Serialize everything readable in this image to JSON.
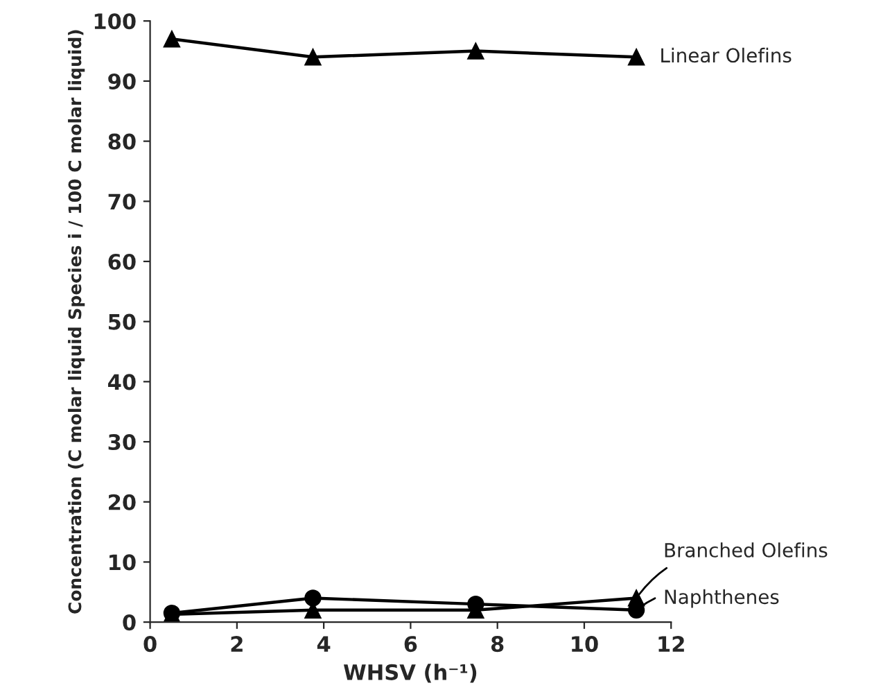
{
  "chart_data": {
    "type": "line",
    "xlabel": "WHSV (h⁻¹)",
    "ylabel": "Concentration (C molar liquid Species i / 100 C molar liquid)",
    "x": [
      0.5,
      3.75,
      7.5,
      11.2
    ],
    "series": [
      {
        "name": "Linear Olefins",
        "color": "#000000",
        "marker": "triangle",
        "values": [
          97,
          94,
          95,
          94
        ]
      },
      {
        "name": "Branched Olefins",
        "color": "#000000",
        "marker": "triangle",
        "values": [
          1.3,
          2,
          2,
          4
        ]
      },
      {
        "name": "Naphthenes",
        "color": "#000000",
        "marker": "circle",
        "values": [
          1.5,
          4,
          3,
          2
        ]
      }
    ],
    "xlim": [
      0,
      12
    ],
    "xticks": [
      0,
      2,
      4,
      6,
      8,
      10,
      12
    ],
    "ylim": [
      0,
      100
    ],
    "yticks": [
      0,
      10,
      20,
      30,
      40,
      50,
      60,
      70,
      80,
      90,
      100
    ],
    "grid": false
  }
}
